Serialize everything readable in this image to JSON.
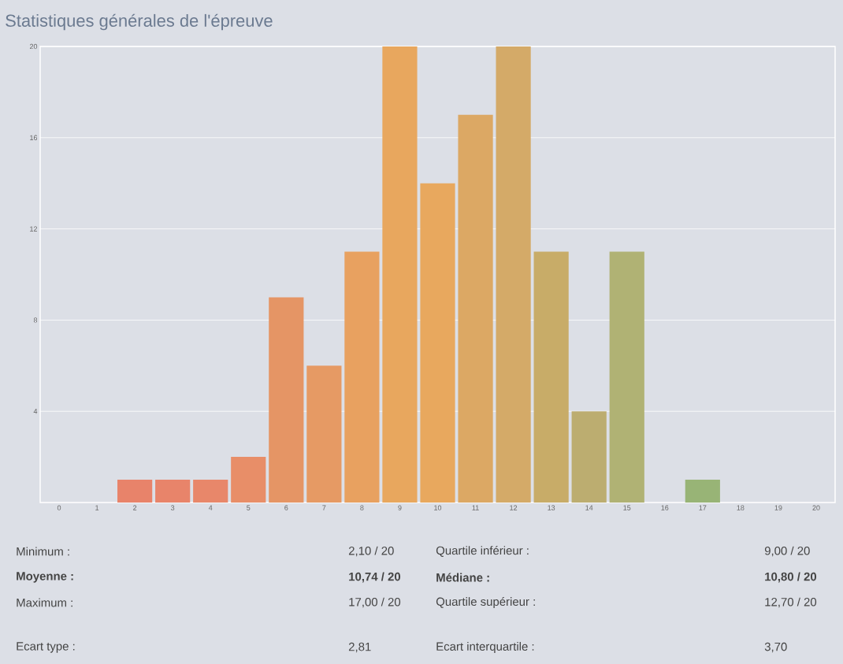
{
  "chart_data": {
    "type": "bar",
    "title": "Statistiques générales de l'épreuve",
    "categories": [
      "0",
      "1",
      "2",
      "3",
      "4",
      "5",
      "6",
      "7",
      "8",
      "9",
      "10",
      "11",
      "12",
      "13",
      "14",
      "15",
      "16",
      "17",
      "18",
      "19",
      "20"
    ],
    "values": [
      0,
      0,
      1,
      1,
      1,
      2,
      9,
      6,
      11,
      20,
      14,
      17,
      20,
      11,
      4,
      11,
      0,
      1,
      0,
      0,
      0
    ],
    "colors": [
      "#e8806a",
      "#e8816a",
      "#e8836a",
      "#e8846a",
      "#e8876a",
      "#e88e68",
      "#e59565",
      "#e69a64",
      "#e8a160",
      "#e8a75e",
      "#e8a85e",
      "#dca864",
      "#d4aa68",
      "#c8ac68",
      "#bcad70",
      "#b0b274",
      "#a4b374",
      "#98b476",
      "#94b478",
      "#90b57a",
      "#8cb57c"
    ],
    "ylim": [
      0,
      20
    ],
    "yticks": [
      4,
      8,
      12,
      16,
      20
    ],
    "grid": "y",
    "annotations": [
      "Minimum :",
      "2,10 / 20",
      "Quartile inférieur :",
      "9,00 / 20",
      "Moyenne :",
      "10,74 / 20",
      "Médiane :",
      "10,80 / 20",
      "Maximum :",
      "17,00 / 20",
      "Quartile supérieur :",
      "12,70 / 20",
      "Ecart type :",
      "2,81",
      "Ecart interquartile :",
      "3,70"
    ]
  }
}
